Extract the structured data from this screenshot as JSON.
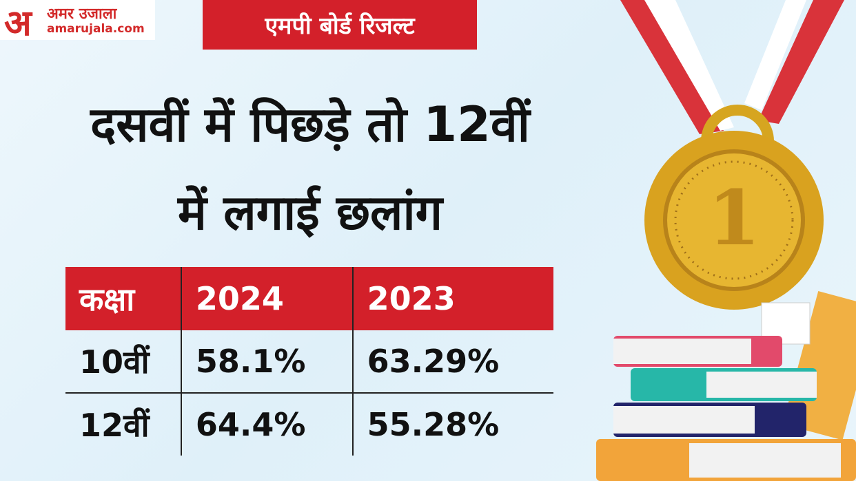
{
  "logo": {
    "mark": "अ",
    "name": "अमर उजाला",
    "site": "amarujala.com"
  },
  "tag": "एमपी बोर्ड रिजल्ट",
  "title": [
    "दसवीं में पिछड़े तो 12वीं",
    "में लगाई छलांग"
  ],
  "medal_label": "1",
  "table": {
    "header": [
      "कक्षा",
      "2024",
      "2023"
    ],
    "rows": [
      [
        "10वीं",
        "58.1%",
        "63.29%"
      ],
      [
        "12वीं",
        "64.4%",
        "55.28%"
      ]
    ]
  }
}
